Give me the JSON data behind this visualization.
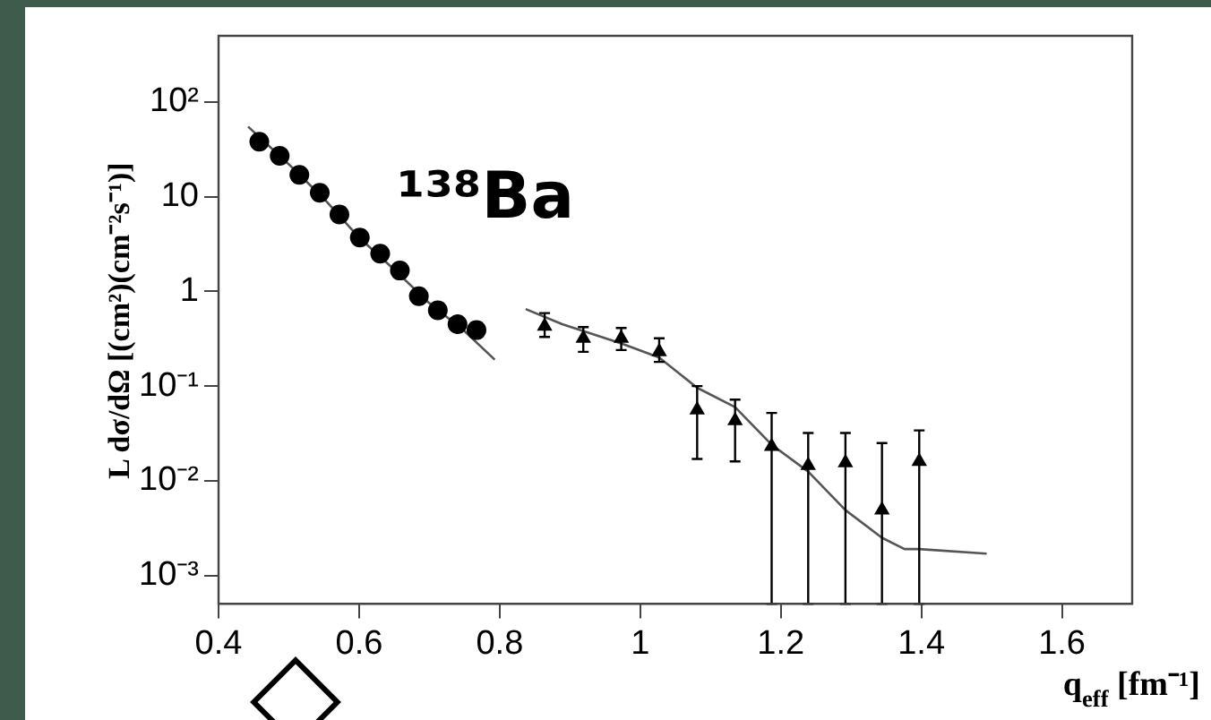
{
  "chart_data": {
    "type": "scatter",
    "xlabel": "q$_{eff}$ [fm⁻¹]",
    "ylabel": "L dσ/dΩ [(cm²)(cm⁻²s⁻¹)]",
    "log": "y",
    "grid": false,
    "legend": false,
    "annotations": [
      "¹³⁸Ba"
    ],
    "xlim": [
      0.4,
      1.7
    ],
    "xticks": [
      0.4,
      0.6,
      0.8,
      1,
      1.2,
      1.4,
      1.6
    ],
    "ylim": [
      0.0005,
      500
    ],
    "yticks": [
      {
        "value": 100,
        "label": "10²"
      },
      10,
      1,
      {
        "value": 0.1,
        "label": "10⁻¹"
      },
      {
        "value": 0.01,
        "label": "10⁻²"
      },
      {
        "value": 0.001,
        "label": "10⁻³"
      }
    ],
    "series": [
      {
        "type": "scatter",
        "marker": "circle",
        "color": "#000000",
        "x": [
          0.458,
          0.487,
          0.515,
          0.544,
          0.572,
          0.601,
          0.63,
          0.658,
          0.685,
          0.712,
          0.74,
          0.767
        ],
        "values": [
          38,
          27,
          17,
          11,
          6.5,
          3.7,
          2.5,
          1.66,
          0.89,
          0.63,
          0.45,
          0.39
        ]
      },
      {
        "type": "scatter",
        "marker": "triangle",
        "color": "#000000",
        "x": [
          0.864,
          0.919,
          0.973,
          1.027,
          1.081,
          1.135,
          1.187,
          1.239,
          1.292,
          1.344,
          1.397
        ],
        "values": [
          0.43,
          0.32,
          0.32,
          0.23,
          0.056,
          0.043,
          0.023,
          0.0145,
          0.0155,
          0.0049,
          0.016
        ],
        "errors": [
          [
            0.33,
            0.59
          ],
          [
            0.23,
            0.42
          ],
          [
            0.24,
            0.41
          ],
          [
            0.18,
            0.32
          ],
          [
            0.017,
            0.1
          ],
          [
            0.016,
            0.072
          ],
          [
            0.0005,
            0.052
          ],
          [
            0.0005,
            0.032
          ],
          [
            0.0005,
            0.032
          ],
          [
            0.0005,
            0.025
          ],
          [
            0.0005,
            0.034
          ]
        ]
      },
      {
        "type": "line",
        "marker": "none",
        "color": "#555555",
        "x": [
          0.442,
          0.5,
          0.55,
          0.6,
          0.65,
          0.7,
          0.75,
          0.793
        ],
        "values": [
          55,
          22,
          9.5,
          3.7,
          1.7,
          0.75,
          0.38,
          0.19
        ]
      },
      {
        "type": "line",
        "marker": "none",
        "color": "#555555",
        "x": [
          0.837,
          0.889,
          0.974,
          1.027,
          1.081,
          1.135,
          1.187,
          1.239,
          1.292,
          1.344,
          1.376,
          1.397,
          1.493
        ],
        "values": [
          0.65,
          0.45,
          0.28,
          0.2,
          0.096,
          0.06,
          0.024,
          0.0125,
          0.0049,
          0.0025,
          0.0019,
          0.0019,
          0.0017
        ]
      }
    ]
  }
}
